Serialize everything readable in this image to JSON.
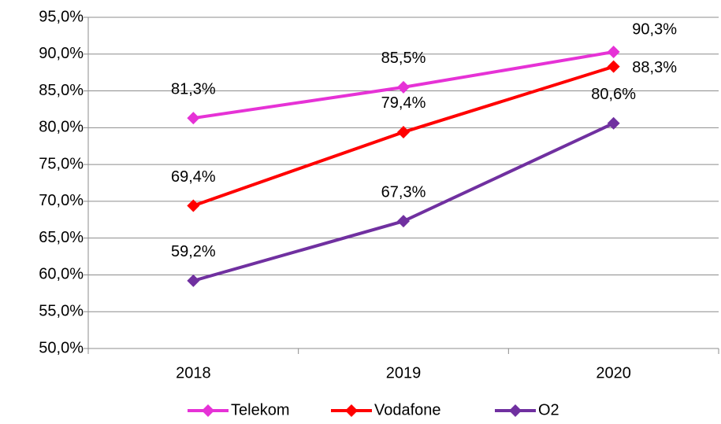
{
  "chart_data": {
    "type": "line",
    "categories": [
      "2018",
      "2019",
      "2020"
    ],
    "series": [
      {
        "name": "Telekom",
        "color": "#e632d6",
        "values": [
          81.3,
          85.5,
          90.3
        ],
        "value_labels": [
          "81,3%",
          "85,5%",
          "90,3%"
        ]
      },
      {
        "name": "Vodafone",
        "color": "#ff0000",
        "values": [
          69.4,
          79.4,
          88.3
        ],
        "value_labels": [
          "69,4%",
          "79,4%",
          "88,3%"
        ]
      },
      {
        "name": "O2",
        "color": "#7030a0",
        "values": [
          59.2,
          67.3,
          80.6
        ],
        "value_labels": [
          "59,2%",
          "67,3%",
          "80,6%"
        ]
      }
    ],
    "ylim": [
      50,
      95
    ],
    "yticks": [
      {
        "value": 50,
        "label": "50,0%"
      },
      {
        "value": 55,
        "label": "55,0%"
      },
      {
        "value": 60,
        "label": "60,0%"
      },
      {
        "value": 65,
        "label": "65,0%"
      },
      {
        "value": 70,
        "label": "70,0%"
      },
      {
        "value": 75,
        "label": "75,0%"
      },
      {
        "value": 80,
        "label": "80,0%"
      },
      {
        "value": 85,
        "label": "85,0%"
      },
      {
        "value": 90,
        "label": "90,0%"
      },
      {
        "value": 95,
        "label": "95,0%"
      }
    ],
    "grid": true,
    "legend": "bottom"
  }
}
